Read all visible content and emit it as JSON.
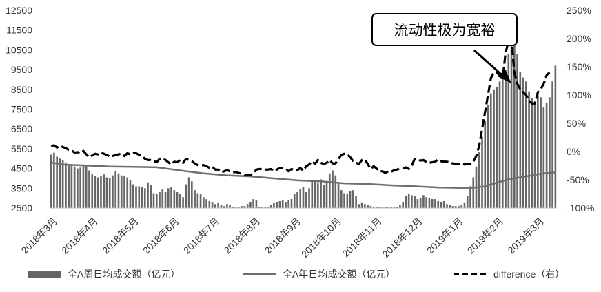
{
  "chart_data": {
    "type": "bar",
    "annotation": "流动性极为宽裕",
    "x": {
      "categories": [
        "2018年3月",
        "2018年4月",
        "2018年5月",
        "2018年6月",
        "2018年7月",
        "2018年8月",
        "2018年9月",
        "2018年10月",
        "2018年11月",
        "2018年12月",
        "2019年1月",
        "2019年2月",
        "2019年3月"
      ]
    },
    "y_left": {
      "min": 2500,
      "max": 12500,
      "ticks": [
        "2500",
        "3500",
        "4500",
        "5500",
        "6500",
        "7500",
        "8500",
        "9500",
        "10500",
        "11500",
        "12500"
      ]
    },
    "y_right": {
      "min": -100,
      "max": 250,
      "ticks": [
        "-100%",
        "-50%",
        "0%",
        "50%",
        "100%",
        "150%",
        "200%",
        "250%"
      ]
    },
    "series": [
      {
        "name": "全A周日均成交额（亿元）",
        "type": "bar",
        "axis": "left",
        "color": "#666666",
        "values": [
          5200,
          5300,
          5100,
          5000,
          4900,
          4800,
          4650,
          4700,
          4600,
          4500,
          4550,
          4700,
          4650,
          4400,
          4200,
          4100,
          4050,
          4100,
          4200,
          4050,
          4000,
          4150,
          4350,
          4250,
          4150,
          4100,
          4050,
          3900,
          3700,
          3600,
          3600,
          3550,
          3500,
          3800,
          3650,
          3250,
          3200,
          3300,
          3450,
          3300,
          3500,
          3550,
          3400,
          3300,
          3200,
          3050,
          3700,
          4050,
          3850,
          3400,
          3250,
          3200,
          3050,
          2950,
          2850,
          2800,
          2700,
          2750,
          2650,
          2600,
          2700,
          2650,
          2550,
          2550,
          2550,
          2600,
          2600,
          2700,
          2800,
          2950,
          2900,
          2550,
          2550,
          2550,
          2550,
          2650,
          2750,
          2800,
          2850,
          2900,
          2800,
          2900,
          2950,
          3200,
          3300,
          3450,
          3550,
          3300,
          3500,
          3850,
          3900,
          3750,
          3950,
          3650,
          3850,
          4250,
          4400,
          4150,
          3800,
          3400,
          3250,
          3200,
          3350,
          3400,
          3100,
          2700,
          2750,
          2700,
          2650,
          2600,
          2550,
          2550,
          2550,
          2550,
          2550,
          2550,
          2550,
          2550,
          2550,
          2650,
          2800,
          3100,
          3200,
          3150,
          3100,
          2950,
          3000,
          3150,
          3050,
          3000,
          2950,
          2950,
          2850,
          2800,
          2850,
          2700,
          2650,
          2600,
          2600,
          2600,
          2650,
          2750,
          3100,
          3600,
          4050,
          4600,
          5350,
          6100,
          6900,
          7700,
          8300,
          8500,
          8600,
          8900,
          9300,
          9500,
          10300,
          10800,
          11100,
          10300,
          9400,
          9100,
          8900,
          8400,
          8050,
          7900,
          8300,
          8100,
          7600,
          7800,
          8100,
          8900,
          9700
        ]
      },
      {
        "name": "全A年日均成交额（亿元）",
        "type": "line",
        "axis": "left",
        "color": "#6e6e6e",
        "x": [
          0,
          4,
          12,
          20,
          28,
          36,
          44,
          52,
          60,
          68,
          76,
          84,
          92,
          100,
          108,
          116,
          124,
          132,
          140,
          144,
          148,
          152,
          156,
          160,
          164,
          168,
          172
        ],
        "values": [
          4800,
          4700,
          4650,
          4600,
          4580,
          4560,
          4400,
          4250,
          4150,
          4100,
          4000,
          3900,
          3850,
          3750,
          3720,
          3650,
          3600,
          3540,
          3520,
          3530,
          3600,
          3780,
          3950,
          4050,
          4150,
          4250,
          4300
        ]
      },
      {
        "name": "difference（右）",
        "type": "dashed-line",
        "axis": "right",
        "color": "#000000",
        "values": [
          10,
          11,
          7,
          10,
          8,
          6,
          3,
          2,
          -2,
          -1,
          -3,
          1,
          -5,
          -10,
          -7,
          -4,
          -5,
          -2,
          -4,
          -6,
          -9,
          -8,
          -6,
          -5,
          -4,
          -8,
          -3,
          -5,
          -2,
          -3,
          -6,
          -8,
          -13,
          -15,
          -15,
          -17,
          -19,
          -13,
          -12,
          -15,
          -19,
          -23,
          -18,
          -19,
          -15,
          -20,
          -13,
          -15,
          -17,
          -21,
          -24,
          -25,
          -24,
          -26,
          -29,
          -27,
          -32,
          -32,
          -37,
          -35,
          -33,
          -35,
          -37,
          -36,
          -38,
          -39,
          -42,
          -42,
          -42,
          -38,
          -32,
          -31,
          -31,
          -32,
          -32,
          -31,
          -35,
          -32,
          -29,
          -29,
          -30,
          -35,
          -31,
          -33,
          -33,
          -29,
          -34,
          -26,
          -23,
          -17,
          -22,
          -15,
          -20,
          -22,
          -20,
          -15,
          -21,
          -21,
          -13,
          -6,
          -4,
          -5,
          -10,
          -17,
          -20,
          -22,
          -15,
          -14,
          -22,
          -31,
          -26,
          -30,
          -35,
          -35,
          -38,
          -35,
          -36,
          -33,
          -32,
          -30,
          -30,
          -28,
          -31,
          -25,
          -13,
          -14,
          -16,
          -15,
          -19,
          -20,
          -19,
          -18,
          -14,
          -17,
          -18,
          -18,
          -19,
          -21,
          -22,
          -22,
          -21,
          -23,
          -22,
          -22,
          -18,
          -8,
          10,
          40,
          70,
          100,
          130,
          140,
          140,
          135,
          130,
          175,
          195,
          200,
          140,
          120,
          110,
          105,
          100,
          90,
          85,
          85,
          105,
          110,
          120,
          135,
          140
        ]
      }
    ],
    "legend": {
      "position": "bottom",
      "items": [
        "全A周日均成交额（亿元）",
        "全A年日均成交额（亿元）",
        "difference（右）"
      ]
    }
  }
}
